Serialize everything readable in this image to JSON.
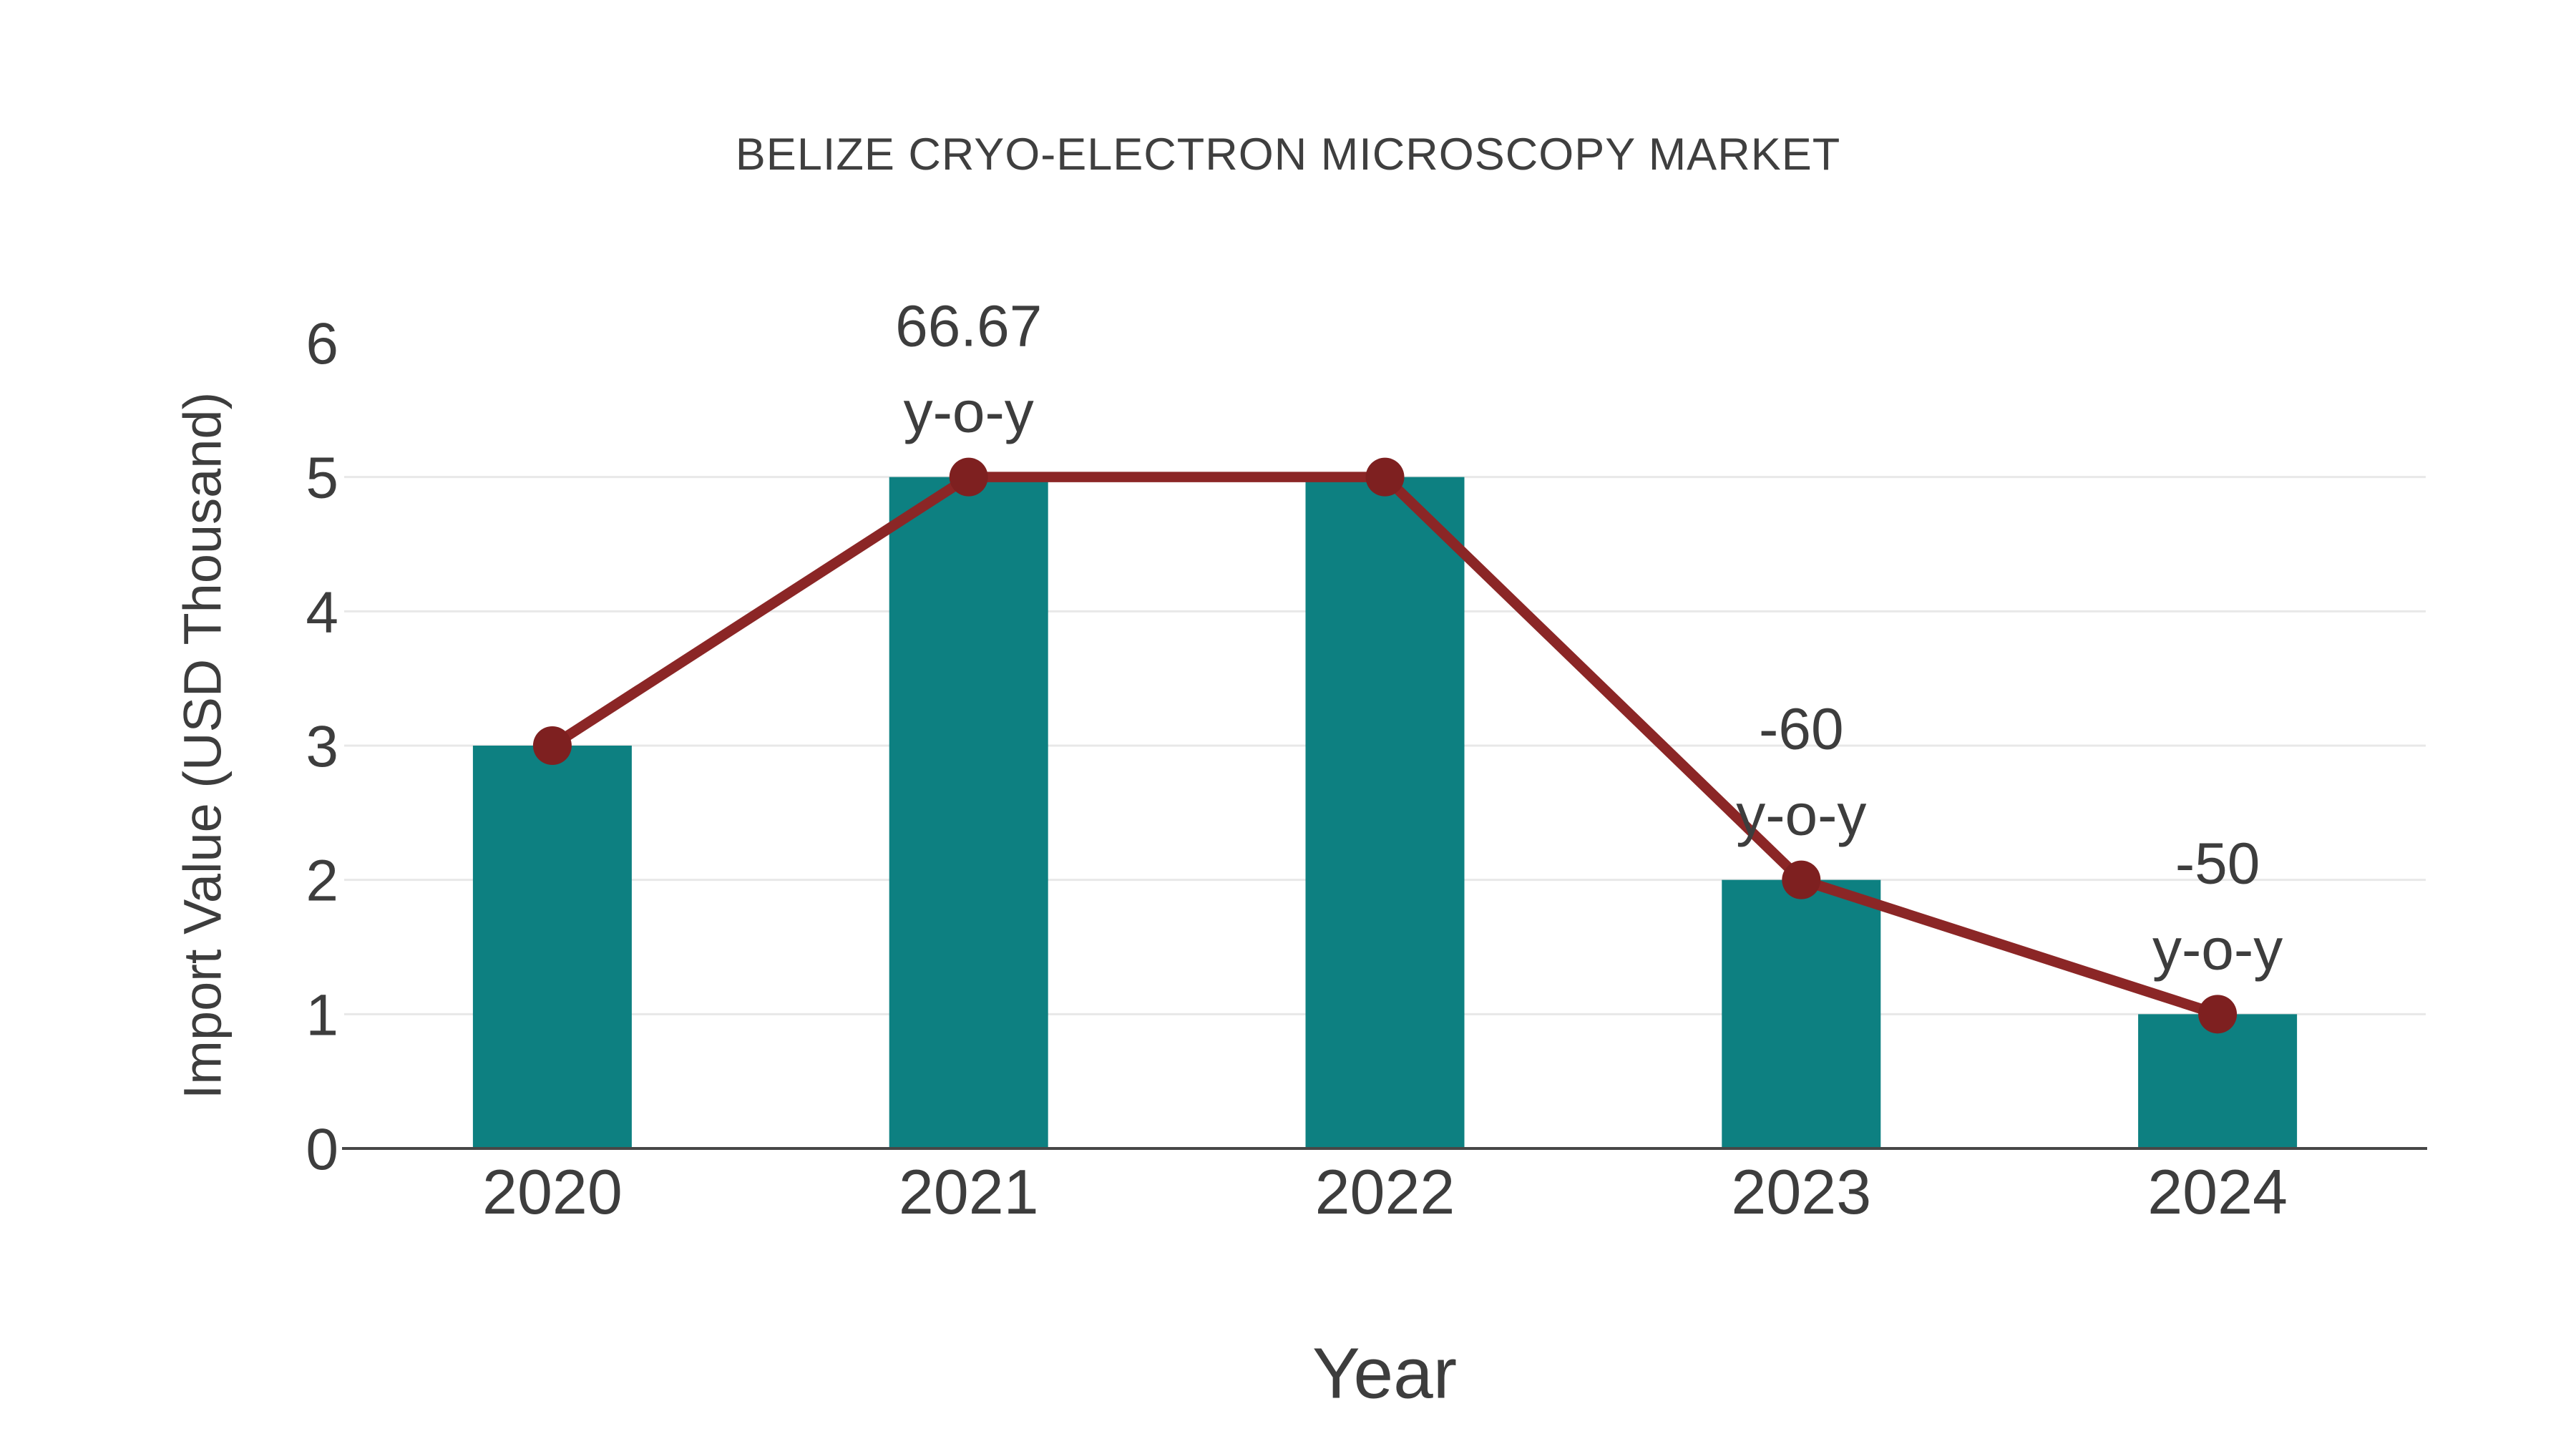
{
  "chart_data": {
    "type": "bar",
    "subtype": "bar-with-line-overlay",
    "title": "BELIZE CRYO-ELECTRON MICROSCOPY MARKET",
    "xlabel": "Year",
    "ylabel": "Import Value (USD Thousand)",
    "categories": [
      "2020",
      "2021",
      "2022",
      "2023",
      "2024"
    ],
    "series": [
      {
        "name": "import-value-bars",
        "type": "bar",
        "values": [
          3,
          5,
          5,
          2,
          1
        ]
      },
      {
        "name": "import-value-line",
        "type": "line",
        "values": [
          3,
          5,
          5,
          2,
          1
        ]
      }
    ],
    "annotations": [
      {
        "category": "2021",
        "lines": [
          "66.67",
          "y-o-y"
        ]
      },
      {
        "category": "2023",
        "lines": [
          "-60",
          "y-o-y"
        ]
      },
      {
        "category": "2024",
        "lines": [
          "-50",
          "y-o-y"
        ]
      }
    ],
    "ylim": [
      0,
      6
    ],
    "yticks": [
      "0",
      "1",
      "2",
      "3",
      "4",
      "5",
      "6"
    ],
    "gridticks": [
      1,
      2,
      3,
      4,
      5
    ],
    "grid": true,
    "legend_position": "none",
    "colors": {
      "bar": "#0d8081",
      "line": "#8b2626",
      "marker": "#7e2020",
      "grid": "#e8e8e8",
      "axis": "#474747",
      "text": "#3d3d3d"
    }
  }
}
